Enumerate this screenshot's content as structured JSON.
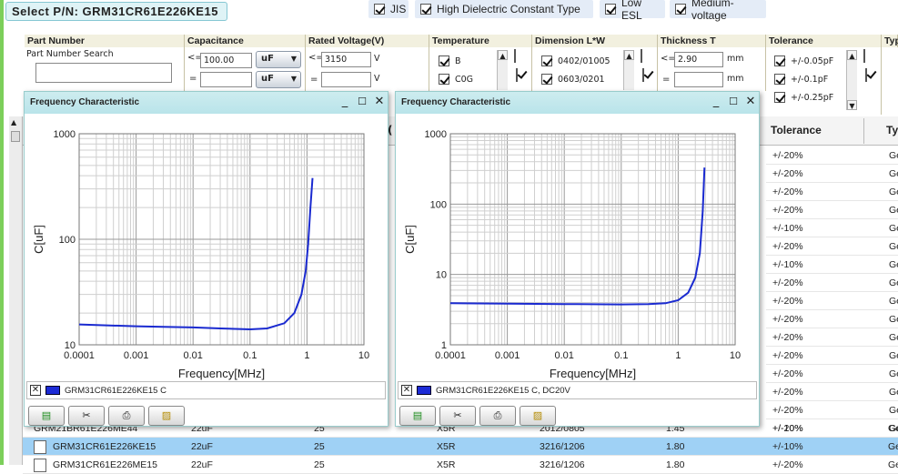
{
  "top": {
    "select_pn": "Select P/N:  GRM31CR61E226KE15",
    "checks": [
      {
        "label": "JIS",
        "checked": true
      },
      {
        "label": "High Dielectric Constant Type",
        "checked": true
      },
      {
        "label": "Low ESL",
        "checked": true
      },
      {
        "label": "Medium-voltage",
        "checked": true
      }
    ]
  },
  "filters": {
    "part_number": {
      "header": "Part Number",
      "search_label": "Part Number Search",
      "value": ""
    },
    "capacitance": {
      "header": "Capacitance",
      "op1": "<=",
      "value1": "100.00",
      "unit1": "uF",
      "op2": "=",
      "value2": "",
      "unit2": "uF"
    },
    "rated_voltage": {
      "header": "Rated Voltage(V)",
      "op1": "<=",
      "value1": "3150",
      "unit1": "V",
      "op2": "=",
      "value2": "",
      "unit2": "V"
    },
    "temperature": {
      "header": "Temperature",
      "items": [
        {
          "label": "B",
          "checked": true
        },
        {
          "label": "C0G",
          "checked": true
        }
      ]
    },
    "dimension": {
      "header": "Dimension L*W",
      "items": [
        {
          "label": "0402/01005",
          "checked": true
        },
        {
          "label": "0603/0201",
          "checked": true
        }
      ]
    },
    "thickness": {
      "header": "Thickness T",
      "op1": "<=",
      "value1": "2.90",
      "unit1": "mm",
      "op2": "=",
      "value2": "",
      "unit2": "mm"
    },
    "tolerance": {
      "header": "Tolerance",
      "items": [
        {
          "label": "+/-0.05pF",
          "checked": true
        },
        {
          "label": "+/-0.1pF",
          "checked": true
        },
        {
          "label": "+/-0.25pF",
          "checked": true
        }
      ]
    },
    "type_header": "Typ"
  },
  "table": {
    "headers": {
      "tolerance": "Tolerance",
      "type": "Ty",
      "voltage_partial": "("
    },
    "tolerance_values": [
      "+/-20%",
      "+/-20%",
      "+/-20%",
      "+/-20%",
      "+/-10%",
      "+/-20%",
      "+/-10%",
      "+/-20%",
      "+/-20%",
      "+/-20%",
      "+/-20%",
      "+/-20%",
      "+/-20%",
      "+/-20%",
      "+/-20%",
      "+/-10%",
      "+/-20%"
    ],
    "type_values": [
      "Ge",
      "Ge",
      "Ge",
      "Ge",
      "Ge",
      "Ge",
      "Ge",
      "Ge",
      "Ge",
      "Ge",
      "Ge",
      "Ge",
      "Ge",
      "Ge",
      "Ge",
      "Ge",
      "Ge"
    ],
    "rows": [
      {
        "pn": "GRM21BR61E226ME44",
        "cap": "22uF",
        "volt": "25",
        "temp": "X5R",
        "dim": "2012/0805",
        "thick": "1.45",
        "tol": "+/-20%",
        "type": "Ge",
        "selected": false
      },
      {
        "pn": "GRM31CR61E226KE15",
        "cap": "22uF",
        "volt": "25",
        "temp": "X5R",
        "dim": "3216/1206",
        "thick": "1.80",
        "tol": "+/-10%",
        "type": "Ge",
        "selected": true
      },
      {
        "pn": "GRM31CR61E226ME15",
        "cap": "22uF",
        "volt": "25",
        "temp": "X5R",
        "dim": "3216/1206",
        "thick": "1.80",
        "tol": "+/-20%",
        "type": "Ge",
        "selected": false
      }
    ]
  },
  "popups": [
    {
      "title": "Frequency Characteristic",
      "legend": "GRM31CR61E226KE15  C",
      "chart": {
        "xlabel": "Frequency[MHz]",
        "ylabel": "C[uF]",
        "xticks": [
          "0.0001",
          "0.001",
          "0.01",
          "0.1",
          "1",
          "10"
        ],
        "yticks": [
          "10",
          "100",
          "1000"
        ]
      }
    },
    {
      "title": "Frequency Characteristic",
      "legend": "GRM31CR61E226KE15  C, DC20V",
      "chart": {
        "xlabel": "Frequency[MHz]",
        "ylabel": "C[uF]",
        "xticks": [
          "0.0001",
          "0.001",
          "0.01",
          "0.1",
          "1",
          "10"
        ],
        "yticks": [
          "1",
          "10",
          "100",
          "1000"
        ]
      }
    }
  ],
  "chart_data": [
    {
      "type": "line",
      "xscale": "log",
      "yscale": "log",
      "xlabel": "Frequency[MHz]",
      "ylabel": "C[uF]",
      "xlim": [
        0.0001,
        10
      ],
      "ylim": [
        10,
        1000
      ],
      "grid": true,
      "color": "#1a2ad0",
      "series": [
        {
          "name": "GRM31CR61E226KE15  C",
          "x": [
            0.0001,
            0.0003,
            0.001,
            0.003,
            0.01,
            0.03,
            0.1,
            0.2,
            0.4,
            0.6,
            0.8,
            0.95,
            1.05,
            1.15,
            1.25
          ],
          "y": [
            15.6,
            15.3,
            15.0,
            14.8,
            14.6,
            14.3,
            14.0,
            14.3,
            16.0,
            20.0,
            30.0,
            50.0,
            90.0,
            200.0,
            380.0
          ]
        }
      ]
    },
    {
      "type": "line",
      "xscale": "log",
      "yscale": "log",
      "xlabel": "Frequency[MHz]",
      "ylabel": "C[uF]",
      "xlim": [
        0.0001,
        10
      ],
      "ylim": [
        1,
        1000
      ],
      "grid": true,
      "color": "#1a2ad0",
      "series": [
        {
          "name": "GRM31CR61E226KE15  C, DC20V",
          "x": [
            0.0001,
            0.001,
            0.01,
            0.1,
            0.3,
            0.6,
            1.0,
            1.5,
            2.0,
            2.4,
            2.7,
            2.9
          ],
          "y": [
            3.9,
            3.85,
            3.8,
            3.75,
            3.8,
            3.9,
            4.3,
            5.5,
            9.0,
            20.0,
            80.0,
            330.0
          ]
        }
      ]
    }
  ]
}
